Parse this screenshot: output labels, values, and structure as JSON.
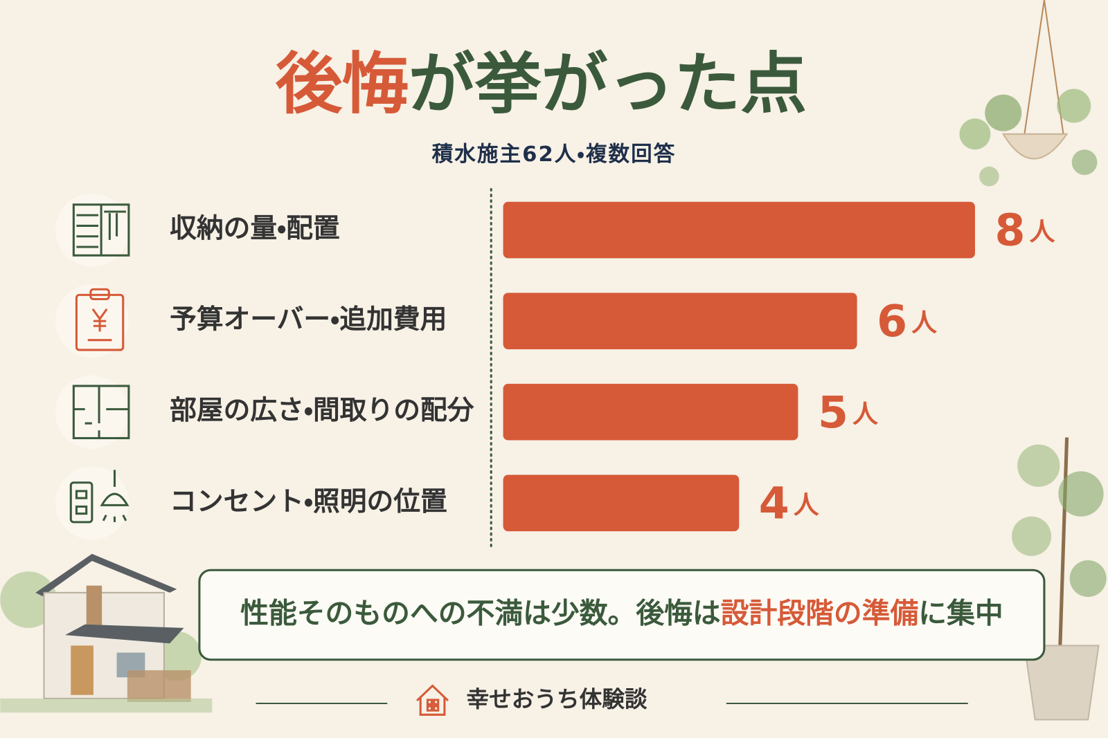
{
  "chart_data": {
    "type": "bar",
    "orientation": "horizontal",
    "title_parts": [
      {
        "text": "後悔",
        "color": "#d65a38"
      },
      {
        "text": "が挙がった点",
        "color": "#3b5a3c"
      }
    ],
    "subtitle": "積水施主62人・複数回答",
    "categories": [
      "収納の量・配置",
      "予算オーバー・追加費用",
      "部屋の広さ・間取りの配分",
      "コンセント・照明の位置"
    ],
    "values": [
      8,
      6,
      5,
      4
    ],
    "unit": "人",
    "color": "#d65a38",
    "xlim": [
      0,
      8
    ],
    "note_parts": [
      {
        "text": "性能そのものへの不満は少数。後悔は",
        "color": "#3b5a3c"
      },
      {
        "text": "設計段階の準備",
        "color": "#d65a38"
      },
      {
        "text": "に集中",
        "color": "#3b5a3c"
      }
    ],
    "brand": "幸せおうち体験談"
  }
}
